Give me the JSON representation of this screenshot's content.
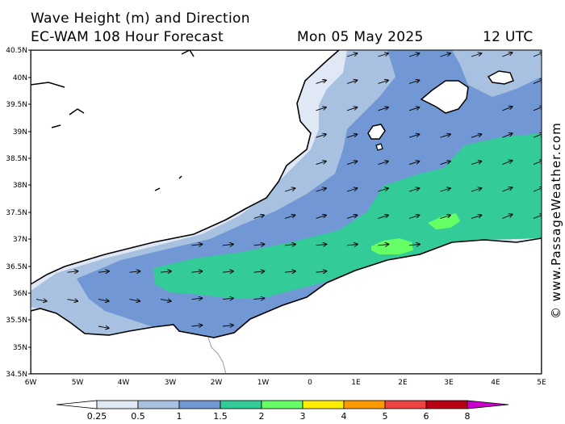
{
  "header": {
    "title": "Wave Height (m) and Direction",
    "model": "EC-WAM 108 Hour Forecast",
    "date": "Mon 05 May 2025",
    "time": "12 UTC"
  },
  "watermark": "© www.PassageWeather.com",
  "axes": {
    "lat_labels": [
      "40.5N",
      "40N",
      "39.5N",
      "39N",
      "38.5N",
      "38N",
      "37.5N",
      "37N",
      "36.5N",
      "36N",
      "35.5N",
      "35N",
      "34.5N"
    ],
    "lon_labels": [
      "6W",
      "5W",
      "4W",
      "3W",
      "2W",
      "1W",
      "0",
      "1E",
      "2E",
      "3E",
      "4E",
      "5E"
    ]
  },
  "legend": {
    "ticks": [
      "0.25",
      "0.5",
      "1",
      "1.5",
      "2",
      "3",
      "4",
      "5",
      "6",
      "8"
    ],
    "colors": [
      "#dfe8f4",
      "#a9c1e1",
      "#7198d4",
      "#33cc99",
      "#66ff66",
      "#ffee00",
      "#ff9900",
      "#ee4444",
      "#bb0011",
      "#cc00cc"
    ]
  },
  "colors": {
    "land": "#ffffff",
    "coast": "#000000",
    "band_0_25": "#dfe8f4",
    "band_0_5": "#a9c1e1",
    "band_1": "#7198d4",
    "band_1_5": "#33cc99",
    "band_2": "#66ff66",
    "arrow": "#000000"
  },
  "wave_direction": "from west-southwest toward east-northeast"
}
